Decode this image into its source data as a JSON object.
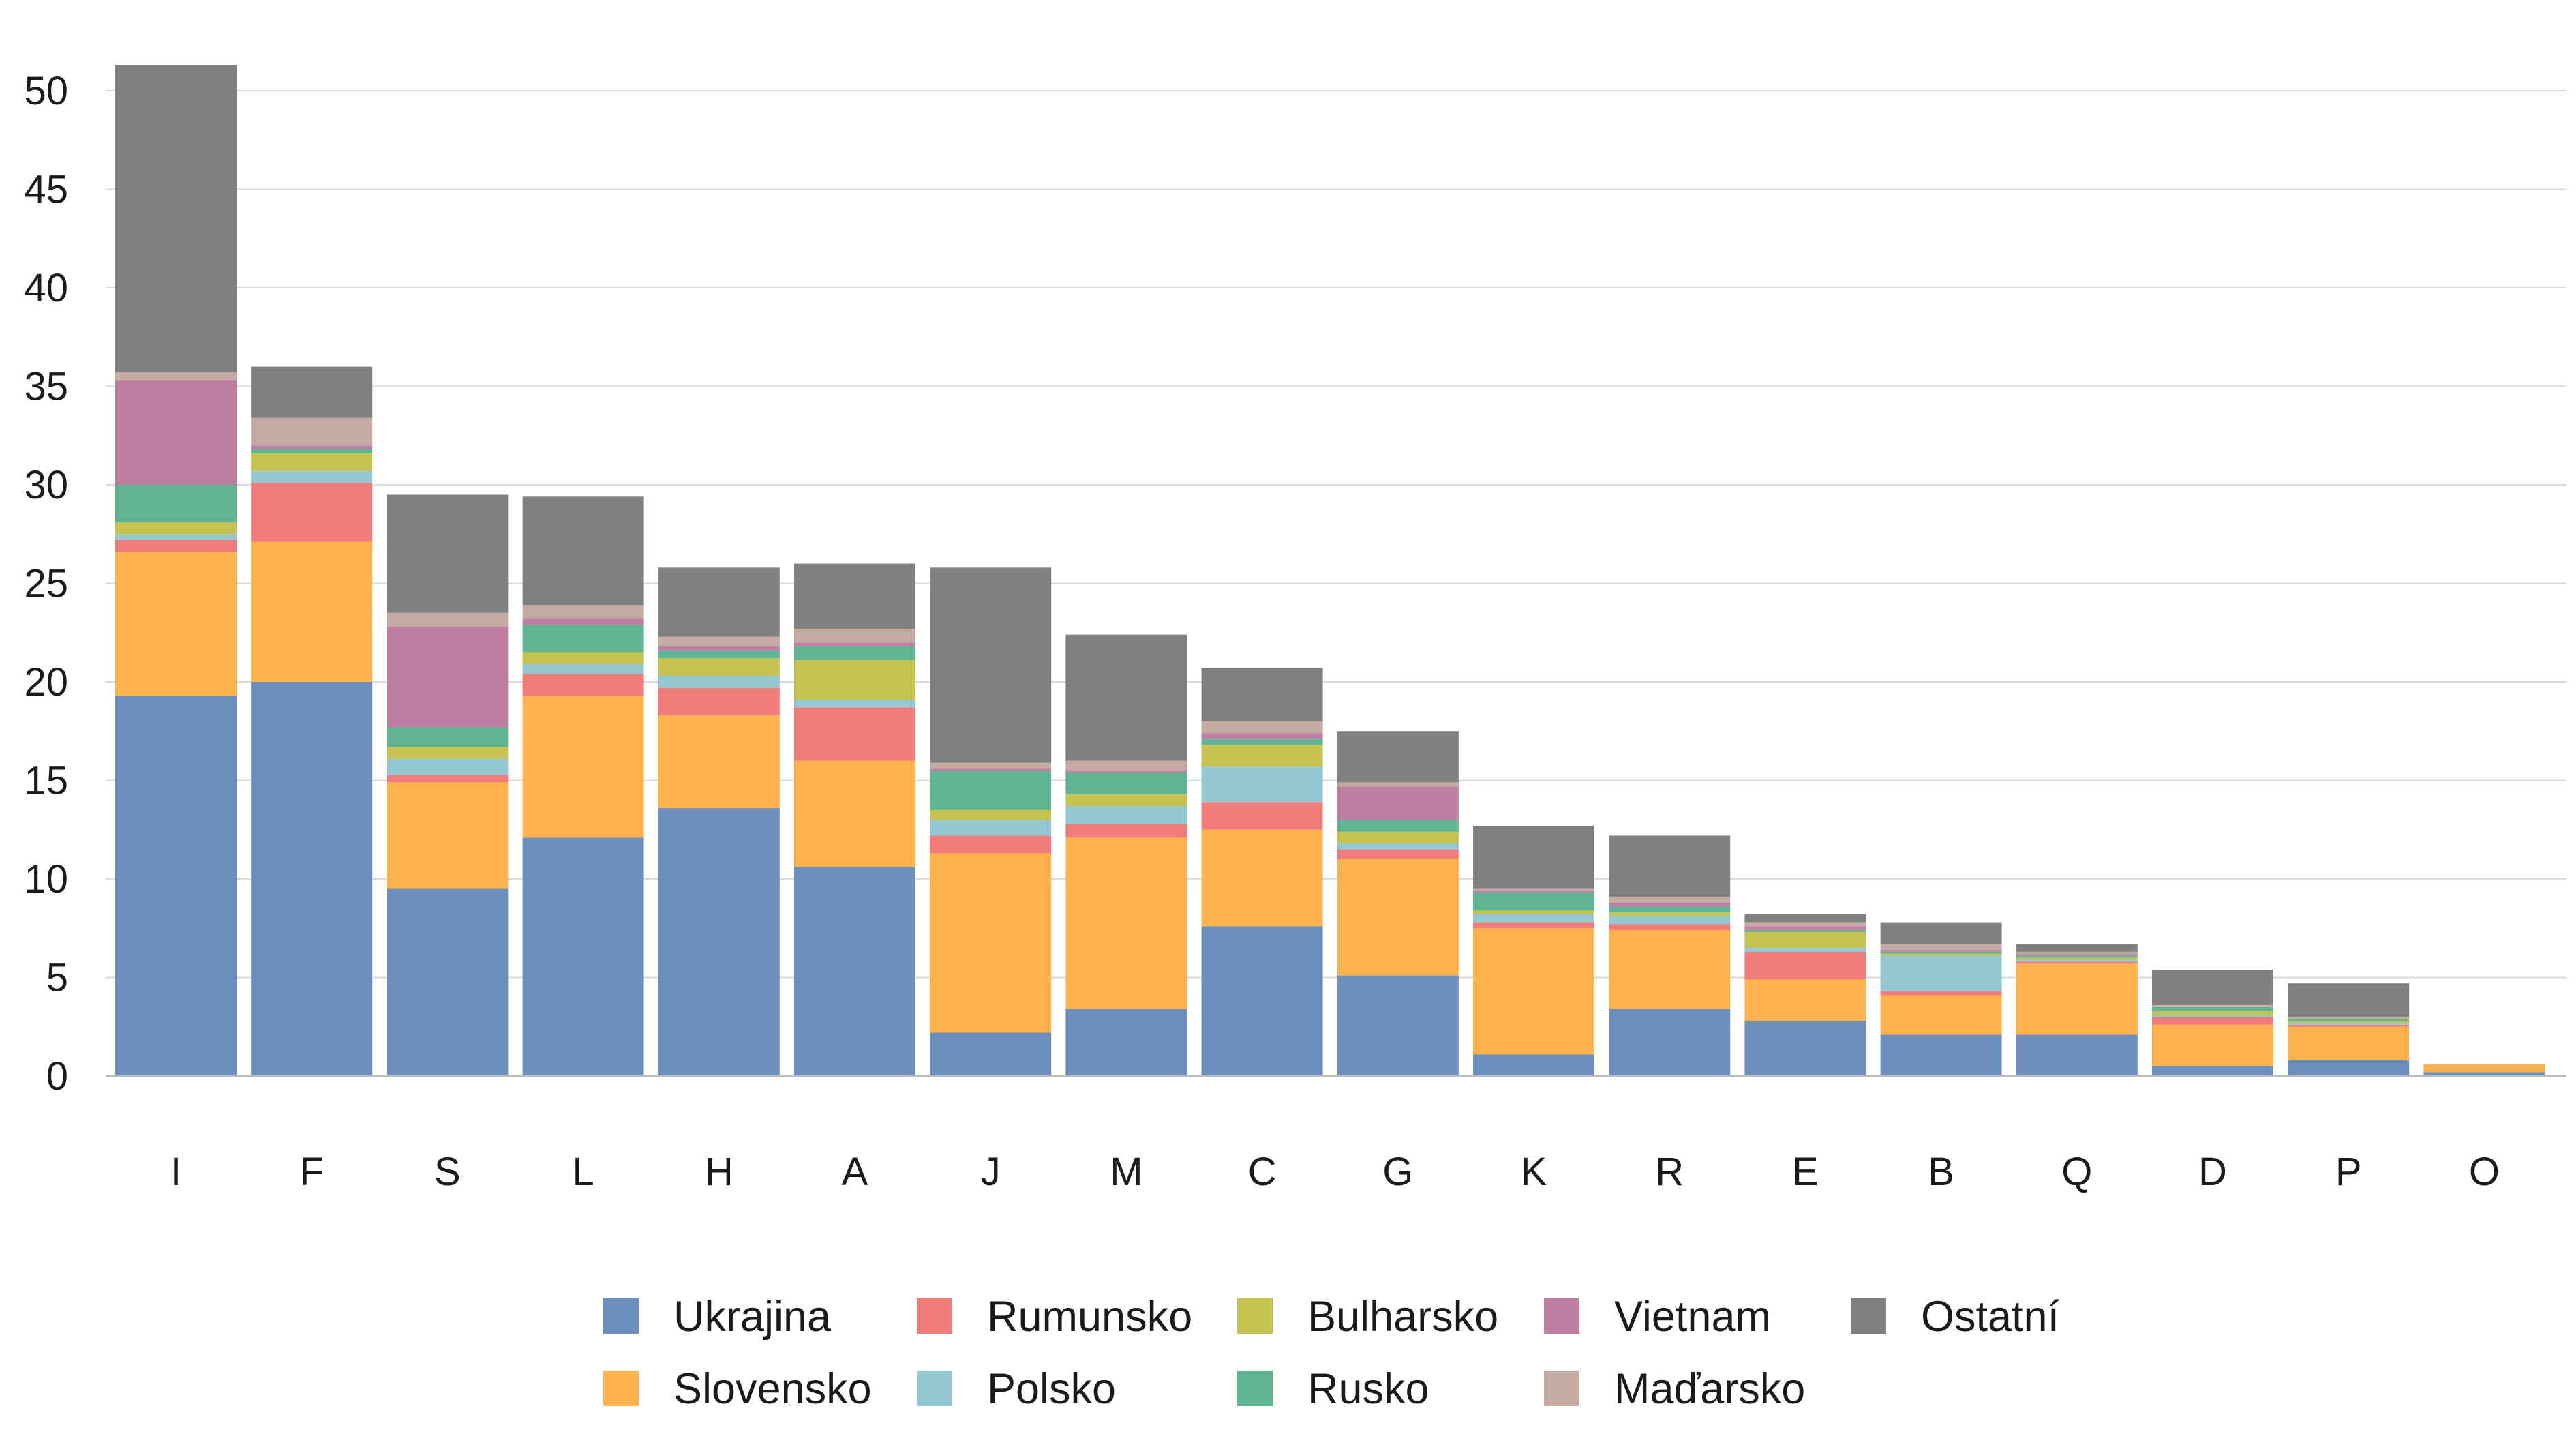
{
  "chart_data": {
    "type": "bar",
    "stacked": true,
    "title": "",
    "xlabel": "",
    "ylabel": "",
    "ylim": [
      0,
      52
    ],
    "y_ticks": [
      0,
      5,
      10,
      15,
      20,
      25,
      30,
      35,
      40,
      45,
      50
    ],
    "grid": "horizontal",
    "legend_position": "bottom",
    "categories": [
      "I",
      "F",
      "S",
      "L",
      "H",
      "A",
      "J",
      "M",
      "C",
      "G",
      "K",
      "R",
      "E",
      "B",
      "Q",
      "D",
      "P",
      "O"
    ],
    "series": [
      {
        "name": "Ukrajina",
        "color": "#6b8fbd",
        "values": [
          19.3,
          20.0,
          9.5,
          12.1,
          13.6,
          10.6,
          2.2,
          3.4,
          7.6,
          5.1,
          1.1,
          3.4,
          2.8,
          2.1,
          2.1,
          0.5,
          0.8,
          0.2
        ]
      },
      {
        "name": "Slovensko",
        "color": "#feb24c",
        "values": [
          7.3,
          7.1,
          5.4,
          7.2,
          4.7,
          5.4,
          9.1,
          8.7,
          4.9,
          5.9,
          6.4,
          4.0,
          2.1,
          2.0,
          3.6,
          2.1,
          1.7,
          0.4
        ]
      },
      {
        "name": "Rumunsko",
        "color": "#f07b78",
        "values": [
          0.6,
          3.0,
          0.4,
          1.1,
          1.4,
          2.7,
          0.9,
          0.7,
          1.4,
          0.5,
          0.3,
          0.3,
          1.4,
          0.2,
          0.1,
          0.4,
          0.1,
          0.0
        ]
      },
      {
        "name": "Polsko",
        "color": "#93c7d1",
        "values": [
          0.3,
          0.6,
          0.8,
          0.5,
          0.6,
          0.4,
          0.8,
          0.9,
          1.8,
          0.3,
          0.4,
          0.4,
          0.2,
          1.8,
          0.1,
          0.1,
          0.1,
          0.0
        ]
      },
      {
        "name": "Bulharsko",
        "color": "#c6c24f",
        "values": [
          0.6,
          0.9,
          0.6,
          0.6,
          0.9,
          2.0,
          0.5,
          0.6,
          1.1,
          0.6,
          0.2,
          0.2,
          0.8,
          0.1,
          0.1,
          0.2,
          0.1,
          0.0
        ]
      },
      {
        "name": "Rusko",
        "color": "#5fb592",
        "values": [
          1.9,
          0.2,
          1.0,
          1.4,
          0.4,
          0.7,
          2.0,
          1.1,
          0.3,
          0.6,
          0.9,
          0.3,
          0.1,
          0.1,
          0.1,
          0.2,
          0.1,
          0.0
        ]
      },
      {
        "name": "Vietnam",
        "color": "#c07ea2",
        "values": [
          5.3,
          0.2,
          5.1,
          0.3,
          0.2,
          0.2,
          0.1,
          0.1,
          0.3,
          1.7,
          0.1,
          0.2,
          0.2,
          0.1,
          0.1,
          0.0,
          0.0,
          0.0
        ]
      },
      {
        "name": "Maďarsko",
        "color": "#c4aaa0",
        "values": [
          0.4,
          1.4,
          0.7,
          0.7,
          0.5,
          0.7,
          0.3,
          0.5,
          0.6,
          0.2,
          0.1,
          0.3,
          0.2,
          0.3,
          0.1,
          0.1,
          0.1,
          0.0
        ]
      },
      {
        "name": "Ostatní",
        "color": "#808080",
        "values": [
          15.6,
          2.6,
          6.0,
          5.5,
          3.5,
          3.3,
          9.9,
          6.4,
          2.7,
          2.6,
          3.2,
          3.1,
          0.4,
          1.1,
          0.4,
          1.8,
          1.7,
          0.0
        ]
      }
    ]
  }
}
